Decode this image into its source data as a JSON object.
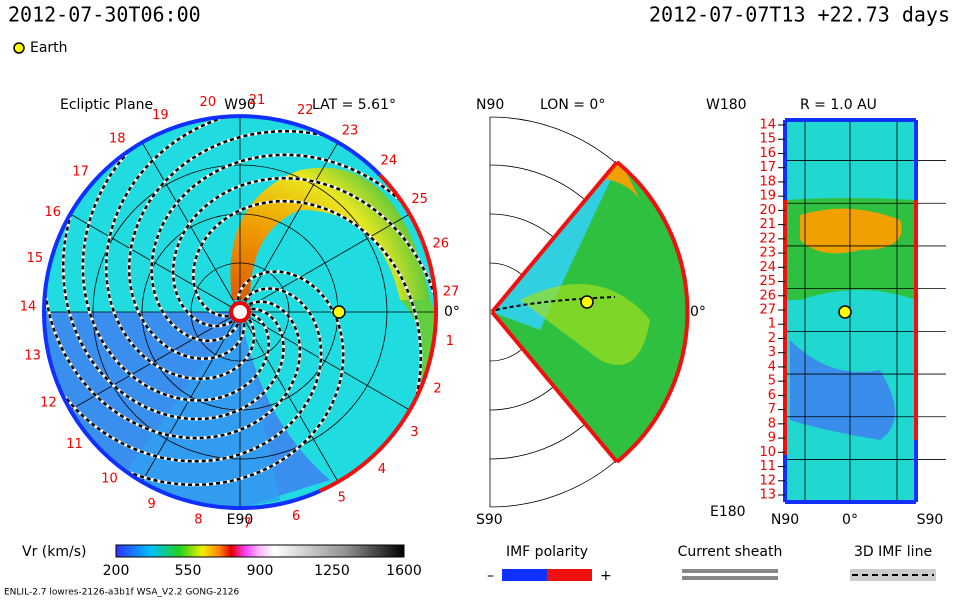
{
  "header": {
    "timestamp": "2012-07-30T06:00",
    "run": "2012-07-07T13 +22.73 days"
  },
  "legend": {
    "earth": "Earth"
  },
  "ecliptic": {
    "title": "Ecliptic Plane",
    "top": "W90",
    "lat": "LAT = 5.61°",
    "bottom": "E90",
    "right": "0°",
    "sectors": [
      "1",
      "2",
      "3",
      "4",
      "5",
      "6",
      "7",
      "8",
      "9",
      "10",
      "11",
      "12",
      "13",
      "14",
      "15",
      "16",
      "17",
      "18",
      "19",
      "20",
      "21",
      "22",
      "23",
      "24",
      "25",
      "26",
      "27"
    ]
  },
  "meridional": {
    "top": "N90",
    "lon": "LON = 0°",
    "right": "0°",
    "bottom": "S90"
  },
  "sphere": {
    "top_left": "W180",
    "radius": "R = 1.0 AU",
    "bottom_left": "E180",
    "rows": [
      "14",
      "15",
      "16",
      "17",
      "18",
      "19",
      "20",
      "21",
      "22",
      "23",
      "24",
      "25",
      "26",
      "27",
      "1",
      "2",
      "3",
      "4",
      "5",
      "6",
      "7",
      "8",
      "9",
      "10",
      "11",
      "12",
      "13"
    ],
    "x_labels": [
      "N90",
      "0°",
      "S90"
    ]
  },
  "colorbar": {
    "title": "Vr (km/s)",
    "ticks": [
      200,
      550,
      900,
      1250,
      1600
    ]
  },
  "imf": {
    "title": "IMF polarity",
    "minus": "–",
    "plus": "+"
  },
  "sheath": "Current sheath",
  "imf_line": "3D IMF line",
  "footer": "ENLIL-2.7 lowres-2126-a3b1f WSA_V2.2 GONG-2126"
}
